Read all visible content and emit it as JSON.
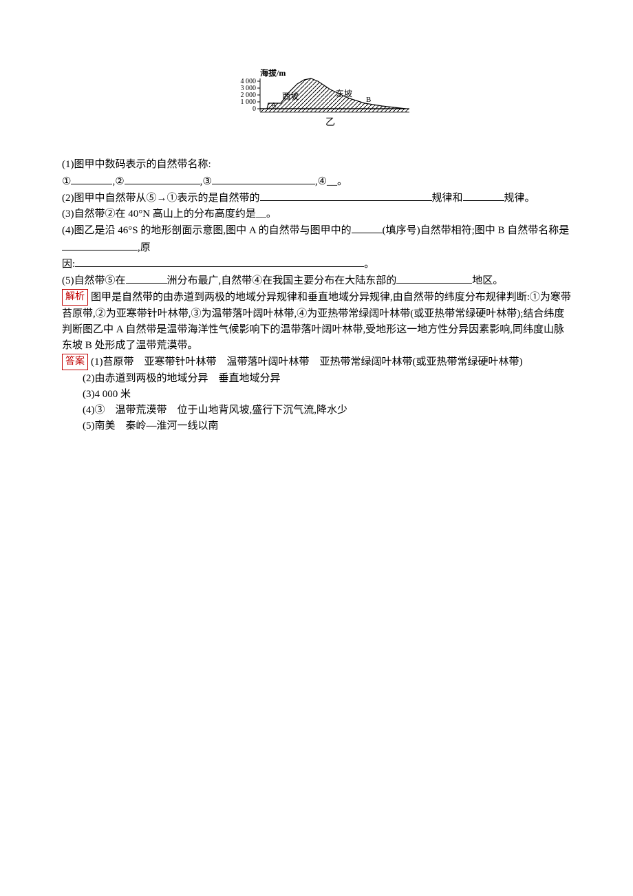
{
  "diagram": {
    "y_axis_label": "海拔/m",
    "y_ticks": [
      "4 000",
      "3 000",
      "2 000",
      "1 000",
      "0"
    ],
    "west_label": "西坡",
    "east_label": "东坡",
    "point_a": "A",
    "point_b": "B",
    "caption": "乙",
    "colors": {
      "stroke": "#000000",
      "bg": "#ffffff"
    }
  },
  "questions": {
    "q1_prefix": "(1)图甲中数码表示的自然带名称:",
    "q1_line2_a": "①",
    "q1_line2_b": ",②",
    "q1_line2_c": ",③",
    "q1_line2_d": ",④__。",
    "q2_a": "(2)图甲中自然带从⑤→①表示的是自然带的",
    "q2_b": "规律和",
    "q2_c": "规律。",
    "q3": "(3)自然带②在 40°N 高山上的分布高度约是__。",
    "q4_a": "(4)图乙是沿 46°S 的地形剖面示意图,图中 A 的自然带与图甲中的",
    "q4_b": "(填序号)自然带相符;图中 B 自然带名称是",
    "q4_c": ",原",
    "q4_d": "因:",
    "q4_e": "。",
    "q5_a": "(5)自然带⑤在",
    "q5_b": "洲分布最广,自然带④在我国主要分布在大陆东部的",
    "q5_c": "地区。"
  },
  "analysis_label": "解析",
  "analysis_text": "图甲是自然带的由赤道到两极的地域分异规律和垂直地域分异规律,由自然带的纬度分布规律判断:①为寒带苔原带,②为亚寒带针叶林带,③为温带落叶阔叶林带,④为亚热带常绿阔叶林带(或亚热带常绿硬叶林带);结合纬度判断图乙中 A 自然带是温带海洋性气候影响下的温带落叶阔叶林带,受地形这一地方性分异因素影响,同纬度山脉东坡 B 处形成了温带荒漠带。",
  "answer_label": "答案",
  "answers": {
    "a1": "(1)苔原带　亚寒带针叶林带　温带落叶阔叶林带　亚热带常绿阔叶林带(或亚热带常绿硬叶林带)",
    "a2": "(2)由赤道到两极的地域分异　垂直地域分异",
    "a3": "(3)4 000 米",
    "a4": "(4)③　温带荒漠带　位于山地背风坡,盛行下沉气流,降水少",
    "a5": "(5)南美　秦岭—淮河一线以南"
  },
  "blanks": {
    "w_short": 60,
    "w_med": 110,
    "w_long": 150,
    "w_xl": 250,
    "w_xxl": 420
  }
}
